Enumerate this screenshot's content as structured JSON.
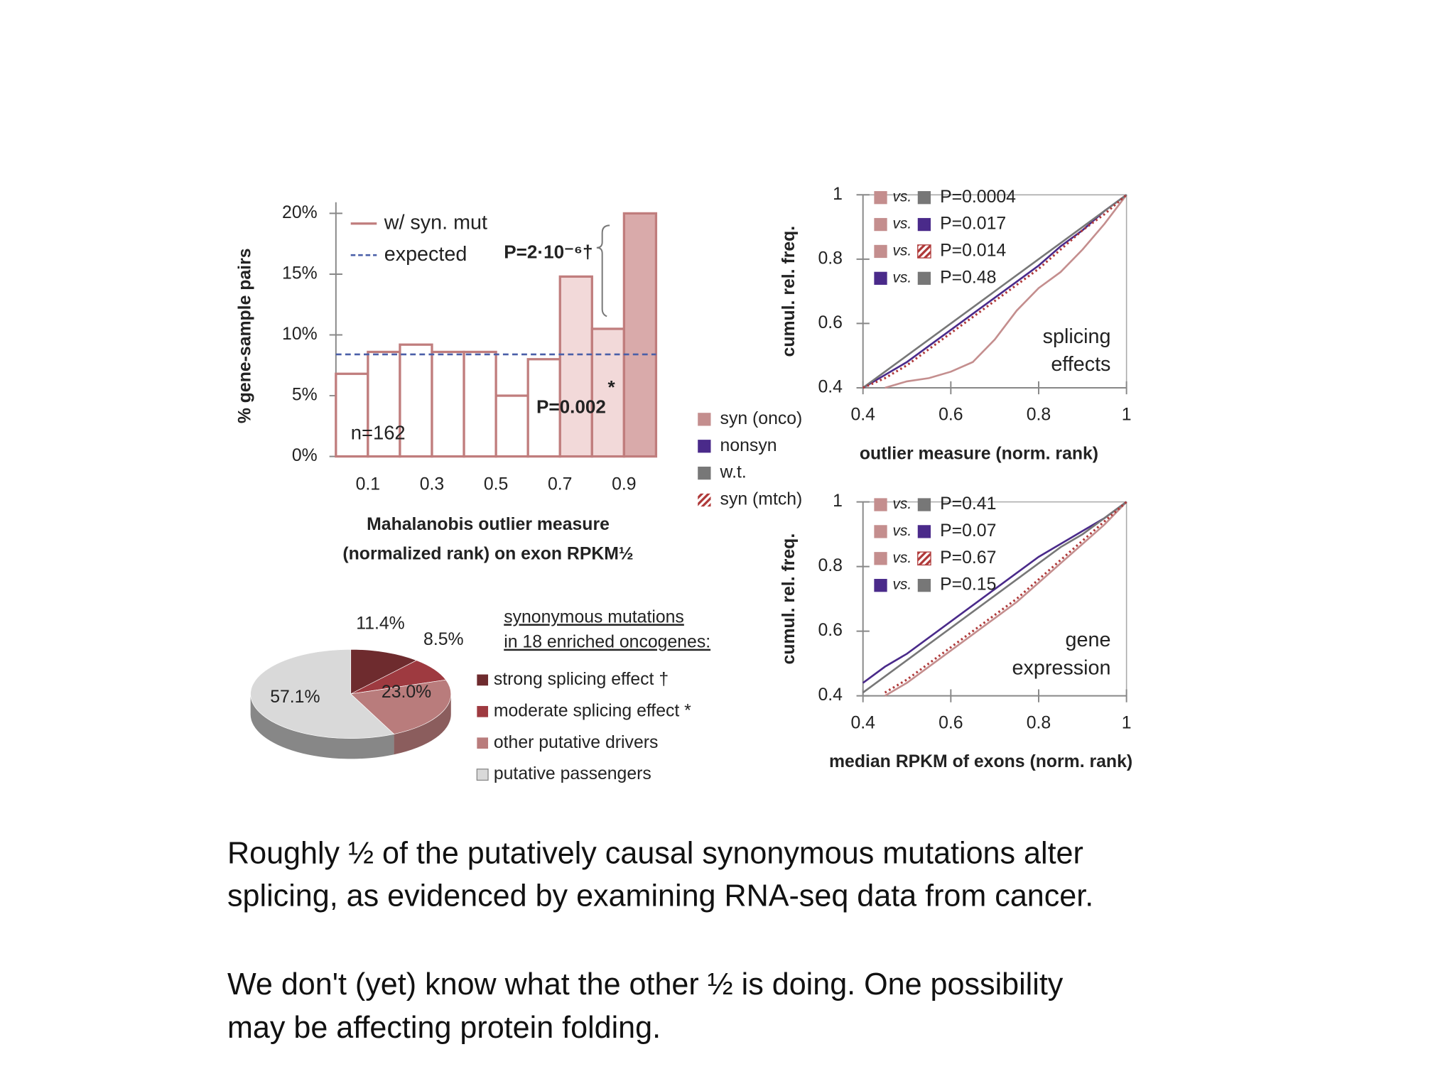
{
  "chart_data": [
    {
      "type": "histogram",
      "ylabel": "% gene-sample pairs",
      "xlabel": [
        "Mahalanobis outlier measure",
        "(normalized rank) on exon RPKM½"
      ],
      "bins": [
        0,
        0.1,
        0.2,
        0.3,
        0.4,
        0.5,
        0.6,
        0.7,
        0.8,
        0.9,
        1.0
      ],
      "values": [
        6.8,
        8.6,
        9.2,
        8.6,
        8.6,
        5.0,
        8.0,
        14.8,
        10.5,
        20
      ],
      "name": "w/ syn. mut",
      "color": "#c07d7d",
      "fills": [
        "#ffffff",
        "#ffffff",
        "#ffffff",
        "#ffffff",
        "#ffffff",
        "#ffffff",
        "#ffffff",
        "#f2d9d9",
        "#f2d9d9",
        "#d9aaaa"
      ],
      "expected": {
        "name": "expected",
        "value": 8.4,
        "color": "#4a5fa8"
      },
      "xlim": [
        0,
        1
      ],
      "xticks": [
        0.1,
        0.3,
        0.5,
        0.7,
        0.9
      ],
      "ylim": [
        0,
        20
      ],
      "yticks": [
        {
          "value": 0,
          "label": "0%"
        },
        {
          "value": 5,
          "label": "5%"
        },
        {
          "value": 10,
          "label": "10%"
        },
        {
          "value": 15,
          "label": "15%"
        },
        {
          "value": 20,
          "label": "20%"
        }
      ],
      "annotations": [
        "P=2·10⁻⁶†",
        "P=0.002",
        "*",
        "n=162"
      ]
    },
    {
      "type": "pie",
      "values": [
        11.4,
        8.5,
        23.0,
        57.1
      ],
      "value_labels": [
        "11.4%",
        "8.5%",
        "23.0%",
        "57.1%"
      ],
      "labels": [
        "strong splicing effect †",
        "moderate splicing effect *",
        "other putative drivers",
        "putative passengers"
      ],
      "colors": [
        "#6e2b2e",
        "#9e3a40",
        "#b97c7c",
        "#d9d9d9"
      ],
      "legend_title": [
        "synonymous mutations",
        "in 18 enriched oncogenes:"
      ]
    },
    {
      "type": "line",
      "ylabel": "cumul. rel. freq.",
      "xlabel": "outlier measure (norm. rank)",
      "annotation": [
        "splicing",
        "effects"
      ],
      "x": [
        0.4,
        0.45,
        0.5,
        0.55,
        0.6,
        0.65,
        0.7,
        0.75,
        0.8,
        0.85,
        0.9,
        0.95,
        1.0
      ],
      "series": [
        {
          "name": "syn (onco)",
          "color": "#c48e8e",
          "values": [
            null,
            0.4,
            0.42,
            0.43,
            0.45,
            0.48,
            0.55,
            0.64,
            0.71,
            0.76,
            0.83,
            0.91,
            1.0
          ]
        },
        {
          "name": "nonsyn",
          "color": "#4a2a8a",
          "values": [
            0.4,
            0.44,
            0.48,
            0.53,
            0.58,
            0.63,
            0.68,
            0.73,
            0.78,
            0.84,
            0.89,
            0.95,
            1.0
          ]
        },
        {
          "name": "w.t.",
          "color": "#777777",
          "values": [
            0.4,
            0.45,
            0.5,
            0.55,
            0.6,
            0.65,
            0.7,
            0.75,
            0.8,
            0.85,
            0.9,
            0.95,
            1.0
          ]
        },
        {
          "name": "syn (mtch)",
          "color": "#b03a3a",
          "hatched": true,
          "values": [
            0.4,
            0.43,
            0.47,
            0.52,
            0.57,
            0.62,
            0.67,
            0.72,
            0.77,
            0.83,
            0.89,
            0.94,
            1.0
          ]
        }
      ],
      "vs_label": "vs.",
      "comparisons": [
        {
          "colors": [
            "#c48e8e",
            "#777777"
          ],
          "label": "P=0.0004"
        },
        {
          "colors": [
            "#c48e8e",
            "#4a2a8a"
          ],
          "label": "P=0.017"
        },
        {
          "colors": [
            "#c48e8e",
            "#b03a3a"
          ],
          "label": "P=0.014"
        },
        {
          "colors": [
            "#4a2a8a",
            "#777777"
          ],
          "label": "P=0.48"
        }
      ],
      "xlim": [
        0.4,
        1
      ],
      "xticks": [
        0.4,
        0.6,
        0.8,
        1
      ],
      "ylim": [
        0.4,
        1
      ],
      "yticks": [
        0.4,
        0.6,
        0.8,
        1
      ]
    },
    {
      "type": "line",
      "ylabel": "cumul. rel. freq.",
      "xlabel": "median RPKM of exons (norm. rank)",
      "annotation": [
        "gene",
        "expression"
      ],
      "x": [
        0.4,
        0.45,
        0.5,
        0.55,
        0.6,
        0.65,
        0.7,
        0.75,
        0.8,
        0.85,
        0.9,
        0.95,
        1.0
      ],
      "series": [
        {
          "color": "#c48e8e",
          "values": [
            null,
            0.4,
            0.44,
            0.49,
            0.54,
            0.59,
            0.64,
            0.69,
            0.75,
            0.81,
            0.87,
            0.93,
            1.0
          ]
        },
        {
          "color": "#4a2a8a",
          "values": [
            0.44,
            0.49,
            0.53,
            0.58,
            0.63,
            0.68,
            0.73,
            0.78,
            0.83,
            0.87,
            0.91,
            0.95,
            1.0
          ]
        },
        {
          "color": "#777777",
          "values": [
            0.41,
            0.46,
            0.51,
            0.56,
            0.61,
            0.66,
            0.71,
            0.76,
            0.81,
            0.86,
            0.9,
            0.95,
            1.0
          ]
        },
        {
          "color": "#b03a3a",
          "hatched": true,
          "values": [
            null,
            0.41,
            0.45,
            0.5,
            0.55,
            0.6,
            0.65,
            0.7,
            0.76,
            0.82,
            0.88,
            0.94,
            1.0
          ]
        }
      ],
      "vs_label": "vs.",
      "comparisons": [
        {
          "colors": [
            "#c48e8e",
            "#777777"
          ],
          "label": "P=0.41"
        },
        {
          "colors": [
            "#c48e8e",
            "#4a2a8a"
          ],
          "label": "P=0.07"
        },
        {
          "colors": [
            "#c48e8e",
            "#b03a3a"
          ],
          "label": "P=0.67"
        },
        {
          "colors": [
            "#4a2a8a",
            "#777777"
          ],
          "label": "P=0.15"
        }
      ],
      "xlim": [
        0.4,
        1
      ],
      "xticks": [
        0.4,
        0.6,
        0.8,
        1
      ],
      "ylim": [
        0.4,
        1
      ],
      "yticks": [
        0.4,
        0.6,
        0.8,
        1
      ]
    }
  ],
  "slide_text": [
    [
      "Roughly ½ of the putatively causal synonymous mutations alter",
      "splicing, as evidenced by examining RNA-seq data from cancer."
    ],
    [
      "We don't (yet) know what the other ½ is doing. One possibility",
      "may be affecting protein folding."
    ]
  ]
}
